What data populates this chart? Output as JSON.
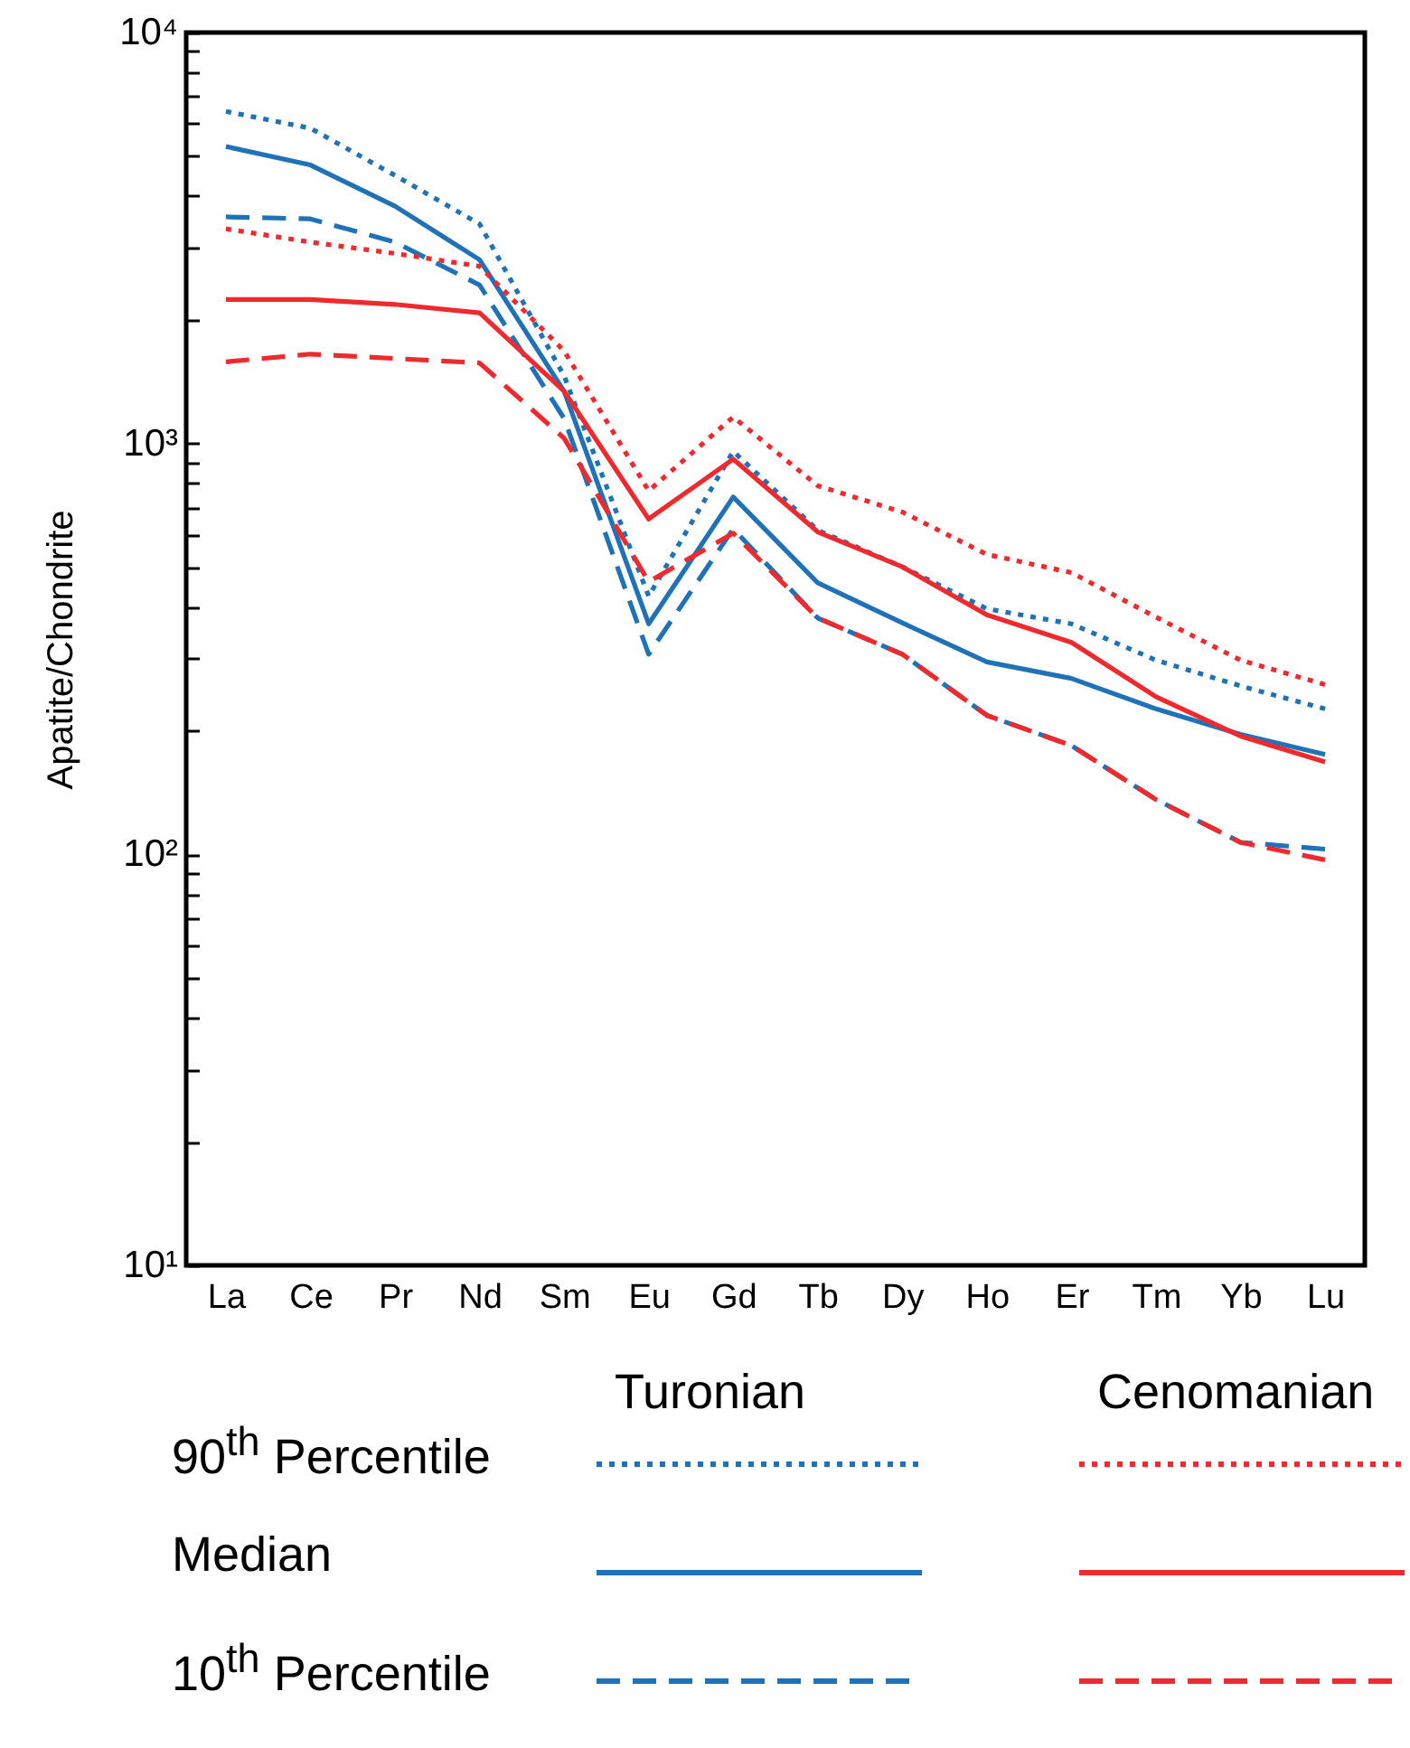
{
  "chart_data": {
    "type": "line",
    "ylabel": "Apatite/Chondrite",
    "log": true,
    "grid": false,
    "marker": "none",
    "categories": [
      "La",
      "Ce",
      "Pr",
      "Nd",
      "Sm",
      "Eu",
      "Gd",
      "Tb",
      "Dy",
      "Ho",
      "Er",
      "Tm",
      "Yb",
      "Lu"
    ],
    "ylim": [
      10,
      10000
    ],
    "yticks": [
      {
        "value": 10,
        "label": "10¹"
      },
      {
        "value": 20,
        "label": null
      },
      {
        "value": 30,
        "label": null
      },
      {
        "value": 40,
        "label": null
      },
      {
        "value": 50,
        "label": null
      },
      {
        "value": 60,
        "label": null
      },
      {
        "value": 70,
        "label": null
      },
      {
        "value": 80,
        "label": null
      },
      {
        "value": 90,
        "label": null
      },
      {
        "value": 100,
        "label": "10²"
      },
      {
        "value": 200,
        "label": null
      },
      {
        "value": 300,
        "label": null
      },
      {
        "value": 400,
        "label": null
      },
      {
        "value": 500,
        "label": null
      },
      {
        "value": 600,
        "label": null
      },
      {
        "value": 700,
        "label": null
      },
      {
        "value": 800,
        "label": null
      },
      {
        "value": 900,
        "label": null
      },
      {
        "value": 1000,
        "label": "10³"
      },
      {
        "value": 2000,
        "label": null
      },
      {
        "value": 3000,
        "label": null
      },
      {
        "value": 4000,
        "label": null
      },
      {
        "value": 5000,
        "label": null
      },
      {
        "value": 6000,
        "label": null
      },
      {
        "value": 7000,
        "label": null
      },
      {
        "value": 8000,
        "label": null
      },
      {
        "value": 9000,
        "label": null
      },
      {
        "value": 10000,
        "label": "10⁴"
      }
    ],
    "annotations": [
      "Turonian",
      "Cenomanian",
      "90$^{th}$ Percentile",
      "Median",
      "10$^{th}$ Percentile"
    ],
    "series": [
      {
        "color": "#1f72b8",
        "line_style": "dotted",
        "values": [
          6430,
          5850,
          4490,
          3420,
          1460,
          425,
          957,
          615,
          501,
          396,
          364,
          297,
          257,
          226
        ]
      },
      {
        "color": "#1f72b8",
        "line_style": "solid",
        "values": [
          5280,
          4760,
          3780,
          2800,
          1340,
          364,
          741,
          458,
          366,
          294,
          268,
          226,
          196,
          175
        ]
      },
      {
        "color": "#1f72b8",
        "line_style": "dashed",
        "values": [
          3560,
          3520,
          3090,
          2430,
          1150,
          307,
          620,
          376,
          307,
          218,
          184,
          136,
          107,
          103
        ]
      },
      {
        "color": "#ee2a2f",
        "line_style": "dotted",
        "values": [
          3330,
          3090,
          2900,
          2700,
          1680,
          767,
          1160,
          789,
          681,
          537,
          485,
          378,
          297,
          259
        ]
      },
      {
        "color": "#ee2a2f",
        "line_style": "solid",
        "values": [
          2240,
          2240,
          2180,
          2080,
          1340,
          655,
          916,
          609,
          501,
          383,
          328,
          242,
          194,
          168
        ]
      },
      {
        "color": "#ee2a2f",
        "line_style": "dashed",
        "values": [
          1580,
          1650,
          1610,
          1570,
          1030,
          461,
          605,
          376,
          307,
          218,
          184,
          136,
          107,
          97
        ]
      }
    ]
  }
}
